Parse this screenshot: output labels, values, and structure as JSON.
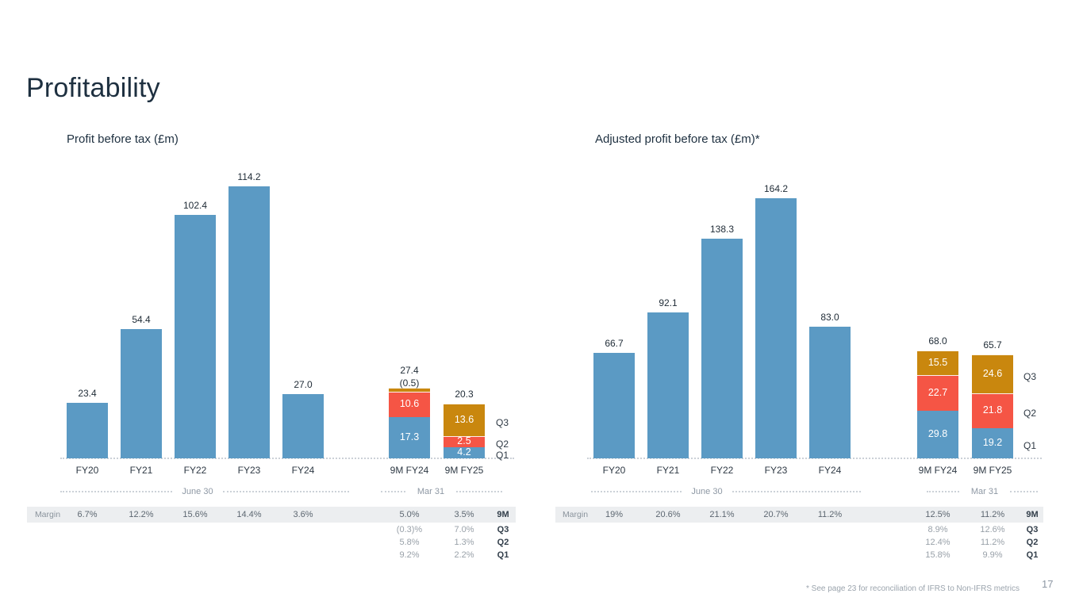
{
  "page": {
    "title": "Profitability",
    "footnote": "* See page 23 for reconciliation of IFRS to Non-IFRS metrics",
    "page_number": "17"
  },
  "colors": {
    "bar_blue": "#5B9AC4",
    "bar_red": "#F55545",
    "bar_orange": "#C9870E",
    "title_text": "#1E3040",
    "muted_text": "#8E98A4",
    "table_band": "#ECEEF0"
  },
  "chart_data": [
    {
      "type": "bar",
      "title": "Profit before tax (£m)",
      "unit": "£m",
      "categories": [
        "FY20",
        "FY21",
        "FY22",
        "FY23",
        "FY24",
        "9M FY24",
        "9M FY25"
      ],
      "legend": [
        "Q3",
        "Q2",
        "Q1"
      ],
      "period_axis": [
        {
          "label": "June 30",
          "covers": [
            "FY20",
            "FY21",
            "FY22",
            "FY23",
            "FY24"
          ]
        },
        {
          "label": "Mar 31",
          "covers": [
            "9M FY24",
            "9M FY25"
          ]
        }
      ],
      "bars": [
        {
          "category": "FY20",
          "total": 23.4,
          "total_label": "23.4"
        },
        {
          "category": "FY21",
          "total": 54.4,
          "total_label": "54.4"
        },
        {
          "category": "FY22",
          "total": 102.4,
          "total_label": "102.4"
        },
        {
          "category": "FY23",
          "total": 114.2,
          "total_label": "114.2"
        },
        {
          "category": "FY24",
          "total": 27.0,
          "total_label": "27.0"
        },
        {
          "category": "9M FY24",
          "total": 27.4,
          "total_label": "27.4",
          "negative_note": "(0.5)",
          "segments": [
            {
              "name": "Q1",
              "value": 17.3,
              "label": "17.3"
            },
            {
              "name": "Q2",
              "value": 10.6,
              "label": "10.6"
            },
            {
              "name": "Q3",
              "value": -0.5,
              "label": ""
            }
          ]
        },
        {
          "category": "9M FY25",
          "total": 20.3,
          "total_label": "20.3",
          "segments": [
            {
              "name": "Q1",
              "value": 4.2,
              "label": "4.2"
            },
            {
              "name": "Q2",
              "value": 2.5,
              "label": "2.5"
            },
            {
              "name": "Q3",
              "value": 13.6,
              "label": "13.6"
            }
          ]
        }
      ],
      "margin_table": {
        "row_label": "Margin",
        "fy_values": [
          "6.7%",
          "12.2%",
          "15.6%",
          "14.4%",
          "3.6%"
        ],
        "nine_month_values": [
          "5.0%",
          "3.5%"
        ],
        "nine_month_label": "9M",
        "quarter_rows": [
          {
            "label": "Q3",
            "values": [
              "(0.3)%",
              "7.0%"
            ]
          },
          {
            "label": "Q2",
            "values": [
              "5.8%",
              "1.3%"
            ]
          },
          {
            "label": "Q1",
            "values": [
              "9.2%",
              "2.2%"
            ]
          }
        ]
      }
    },
    {
      "type": "bar",
      "title": "Adjusted profit before tax (£m)*",
      "unit": "£m",
      "categories": [
        "FY20",
        "FY21",
        "FY22",
        "FY23",
        "FY24",
        "9M FY24",
        "9M FY25"
      ],
      "legend": [
        "Q3",
        "Q2",
        "Q1"
      ],
      "period_axis": [
        {
          "label": "June 30",
          "covers": [
            "FY20",
            "FY21",
            "FY22",
            "FY23",
            "FY24"
          ]
        },
        {
          "label": "Mar 31",
          "covers": [
            "9M FY24",
            "9M FY25"
          ]
        }
      ],
      "bars": [
        {
          "category": "FY20",
          "total": 66.7,
          "total_label": "66.7"
        },
        {
          "category": "FY21",
          "total": 92.1,
          "total_label": "92.1"
        },
        {
          "category": "FY22",
          "total": 138.3,
          "total_label": "138.3"
        },
        {
          "category": "FY23",
          "total": 164.2,
          "total_label": "164.2"
        },
        {
          "category": "FY24",
          "total": 83.0,
          "total_label": "83.0"
        },
        {
          "category": "9M FY24",
          "total": 68.0,
          "total_label": "68.0",
          "segments": [
            {
              "name": "Q1",
              "value": 29.8,
              "label": "29.8"
            },
            {
              "name": "Q2",
              "value": 22.7,
              "label": "22.7"
            },
            {
              "name": "Q3",
              "value": 15.5,
              "label": "15.5"
            }
          ]
        },
        {
          "category": "9M FY25",
          "total": 65.7,
          "total_label": "65.7",
          "segments": [
            {
              "name": "Q1",
              "value": 19.2,
              "label": "19.2"
            },
            {
              "name": "Q2",
              "value": 21.8,
              "label": "21.8"
            },
            {
              "name": "Q3",
              "value": 24.6,
              "label": "24.6"
            }
          ]
        }
      ],
      "margin_table": {
        "row_label": "Margin",
        "fy_values": [
          "19%",
          "20.6%",
          "21.1%",
          "20.7%",
          "11.2%"
        ],
        "nine_month_values": [
          "12.5%",
          "11.2%"
        ],
        "nine_month_label": "9M",
        "quarter_rows": [
          {
            "label": "Q3",
            "values": [
              "8.9%",
              "12.6%"
            ]
          },
          {
            "label": "Q2",
            "values": [
              "12.4%",
              "11.2%"
            ]
          },
          {
            "label": "Q1",
            "values": [
              "15.8%",
              "9.9%"
            ]
          }
        ]
      }
    }
  ]
}
